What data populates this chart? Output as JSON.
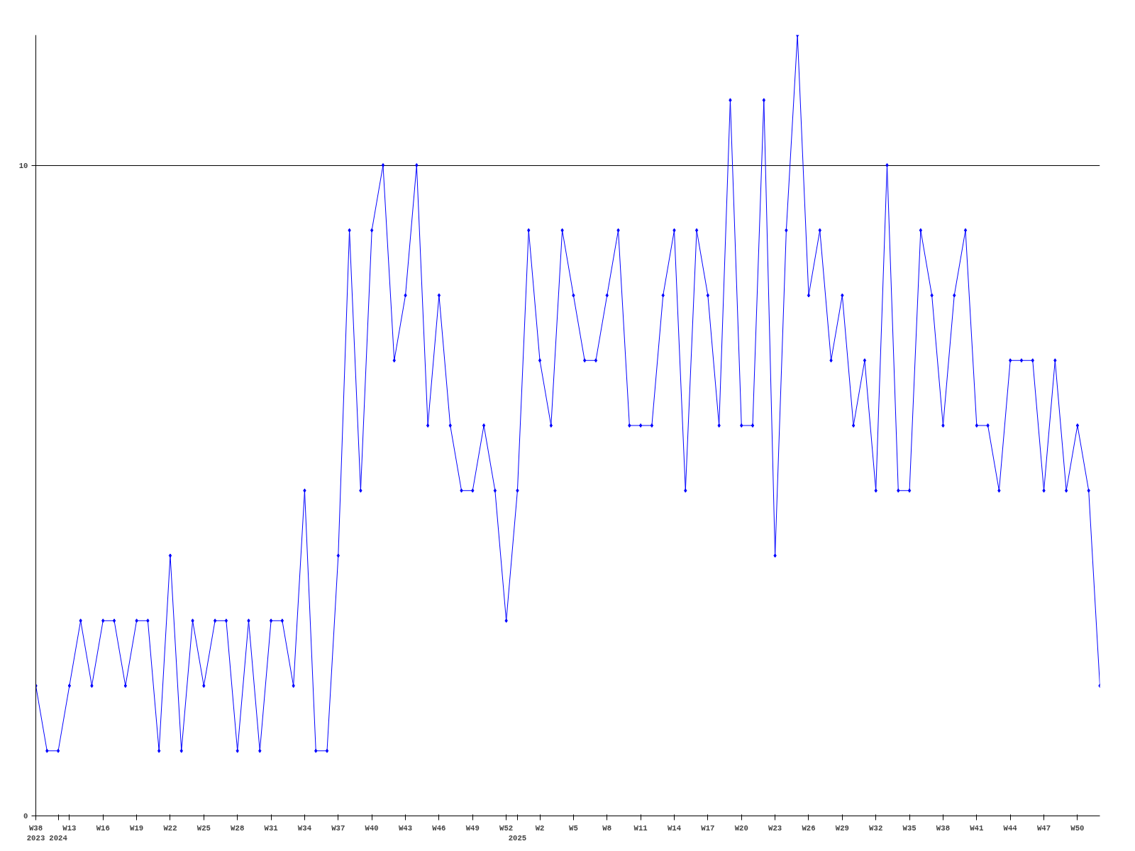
{
  "chart_data": {
    "type": "line",
    "categories": [
      "W38\n2023",
      null,
      "\n2024",
      "W13",
      null,
      null,
      "W16",
      null,
      null,
      "W19",
      null,
      null,
      "W22",
      null,
      null,
      "W25",
      null,
      null,
      "W28",
      null,
      null,
      "W31",
      null,
      null,
      "W34",
      null,
      null,
      "W37",
      null,
      null,
      "W40",
      null,
      null,
      "W43",
      null,
      null,
      "W46",
      null,
      null,
      "W49",
      null,
      null,
      "W52",
      "\n2025",
      null,
      "W2",
      null,
      null,
      "W5",
      null,
      null,
      "W8",
      null,
      null,
      "W11",
      null,
      null,
      "W14",
      null,
      null,
      "W17",
      null,
      null,
      "W20",
      null,
      null,
      "W23",
      null,
      null,
      "W26",
      null,
      null,
      "W29",
      null,
      null,
      "W32",
      null,
      null,
      "W35",
      null,
      null,
      "W38",
      null,
      null,
      "W41",
      null,
      null,
      "W44",
      null,
      null,
      "W47",
      null,
      null,
      "W50",
      null,
      null
    ],
    "series": [
      {
        "color": "#0000ff",
        "values": [
          2,
          1,
          1,
          2,
          3,
          2,
          3,
          3,
          2,
          3,
          3,
          1,
          4,
          1,
          3,
          2,
          3,
          3,
          1,
          3,
          1,
          3,
          3,
          2,
          5,
          1,
          1,
          4,
          9,
          5,
          9,
          10,
          7,
          8,
          10,
          6,
          8,
          6,
          5,
          5,
          6,
          5,
          3,
          5,
          9,
          7,
          6,
          9,
          8,
          7,
          7,
          8,
          9,
          6,
          6,
          6,
          8,
          9,
          5,
          9,
          8,
          6,
          11,
          6,
          6,
          11,
          4,
          9,
          12,
          8,
          9,
          7,
          8,
          6,
          7,
          5,
          10,
          5,
          5,
          9,
          8,
          6,
          8,
          9,
          6,
          6,
          5,
          7,
          7,
          7,
          5,
          7,
          5,
          6,
          5,
          2
        ]
      }
    ],
    "ylim": [
      0,
      12
    ],
    "yticks": [
      0,
      10
    ],
    "grid": "y",
    "marker": "diamond",
    "line_style": "solid"
  }
}
